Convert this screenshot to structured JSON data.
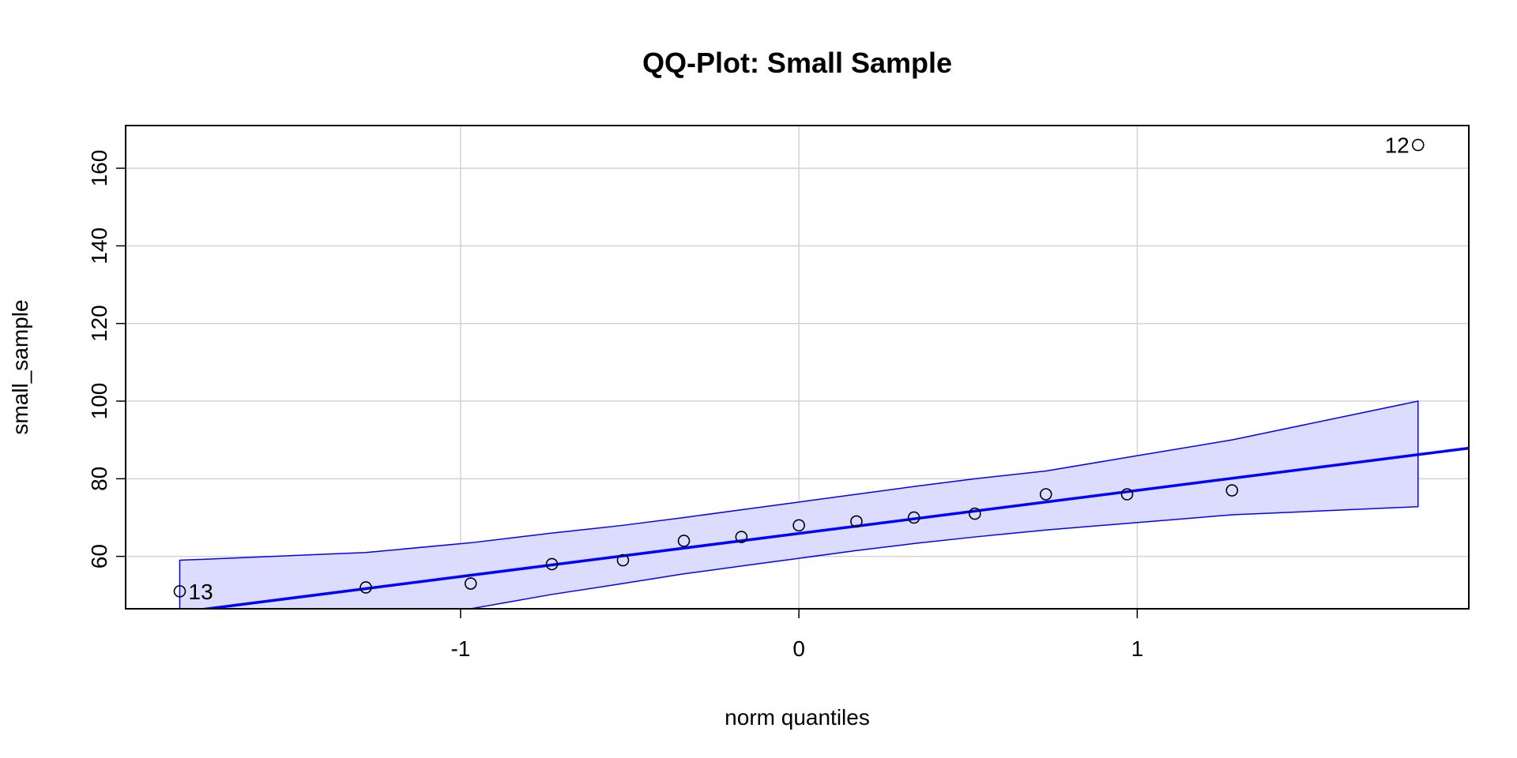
{
  "chart_data": {
    "type": "scatter",
    "title": "QQ-Plot: Small Sample",
    "xlabel": "norm quantiles",
    "ylabel": "small_sample",
    "xlim": [
      -1.99,
      1.98
    ],
    "ylim": [
      46.5,
      171
    ],
    "x_ticks": [
      -1,
      0,
      1
    ],
    "x_tick_labels": [
      "-1",
      "0",
      "1"
    ],
    "y_ticks": [
      60,
      80,
      100,
      120,
      140,
      160
    ],
    "y_tick_labels": [
      "60",
      "80",
      "100",
      "120",
      "140",
      "160"
    ],
    "grid": true,
    "points": [
      {
        "x": -1.83,
        "y": 51,
        "label": "13"
      },
      {
        "x": -1.28,
        "y": 52
      },
      {
        "x": -0.97,
        "y": 53
      },
      {
        "x": -0.73,
        "y": 58
      },
      {
        "x": -0.52,
        "y": 59
      },
      {
        "x": -0.34,
        "y": 64
      },
      {
        "x": -0.17,
        "y": 65
      },
      {
        "x": 0.0,
        "y": 68
      },
      {
        "x": 0.17,
        "y": 69
      },
      {
        "x": 0.34,
        "y": 70
      },
      {
        "x": 0.52,
        "y": 71
      },
      {
        "x": 0.73,
        "y": 76
      },
      {
        "x": 0.97,
        "y": 76
      },
      {
        "x": 1.28,
        "y": 77
      },
      {
        "x": 1.83,
        "y": 166,
        "label": "12"
      }
    ],
    "reference_line": {
      "intercept": 65.9,
      "slope": 11.1
    },
    "confidence_band": {
      "x": [
        -1.83,
        -1.28,
        -0.97,
        -0.73,
        -0.52,
        -0.34,
        -0.17,
        0.0,
        0.17,
        0.34,
        0.52,
        0.73,
        0.97,
        1.28,
        1.83
      ],
      "upper": [
        59,
        61,
        63.5,
        66,
        68,
        70,
        72,
        74,
        76,
        78,
        80,
        82,
        85.5,
        90,
        100
      ],
      "lower": [
        31.8,
        41.8,
        46.5,
        50.2,
        53,
        55.5,
        57.5,
        59.5,
        61.5,
        63.3,
        65,
        66.8,
        68.5,
        70.7,
        72.8
      ]
    },
    "colors": {
      "line": "#0000ff",
      "band_fill": "#dcdcff",
      "band_edge": "#0000ff",
      "points": "#000000",
      "grid": "#d3d3d3"
    }
  }
}
